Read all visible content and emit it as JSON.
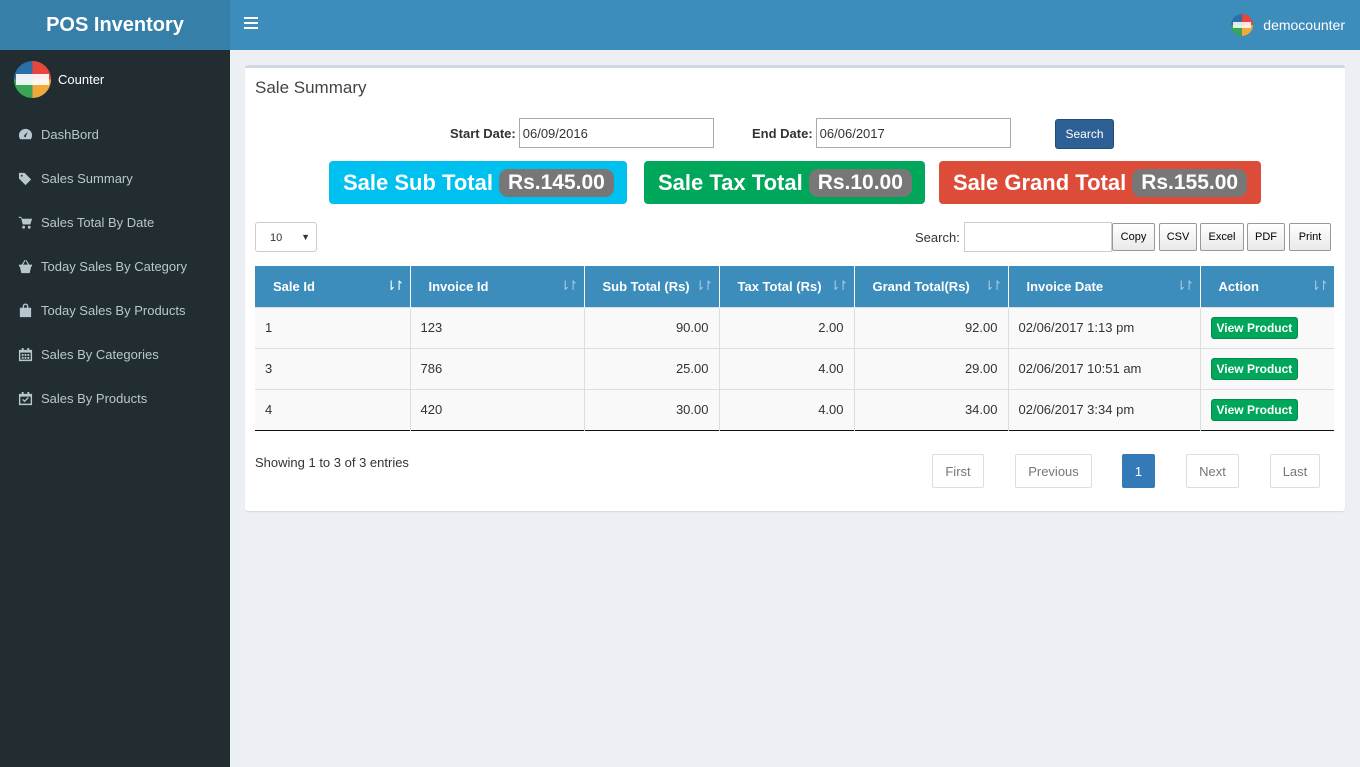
{
  "app": {
    "brand": "POS Inventory",
    "user": "democounter"
  },
  "sidebar": {
    "profile_name": "Counter",
    "items": [
      {
        "label": "DashBord",
        "icon": "dashboard-icon"
      },
      {
        "label": "Sales Summary",
        "icon": "tags-icon"
      },
      {
        "label": "Sales Total By Date",
        "icon": "cart-icon"
      },
      {
        "label": "Today Sales By Category",
        "icon": "basket-icon"
      },
      {
        "label": "Today Sales By Products",
        "icon": "shopping-bag-icon"
      },
      {
        "label": "Sales By Categories",
        "icon": "calendar-icon"
      },
      {
        "label": "Sales By Products",
        "icon": "calendar-check-icon"
      }
    ]
  },
  "page": {
    "title": "Sale Summary",
    "filter": {
      "start_label": "Start Date:",
      "start_value": "06/09/2016",
      "end_label": "End Date:",
      "end_value": "06/06/2017",
      "search_button": "Search"
    },
    "stats": [
      {
        "label": "Sale Sub Total",
        "value": "Rs.145.00",
        "color": "#00c0ef"
      },
      {
        "label": "Sale Tax Total",
        "value": "Rs.10.00",
        "color": "#00a65a"
      },
      {
        "label": "Sale Grand Total",
        "value": "Rs.155.00",
        "color": "#dd4b39"
      }
    ]
  },
  "datatable": {
    "page_length": "10",
    "search_label": "Search:",
    "search_value": "",
    "export_buttons": [
      "Copy",
      "CSV",
      "Excel",
      "PDF",
      "Print"
    ],
    "columns": [
      "Sale Id",
      "Invoice Id",
      "Sub Total (Rs)",
      "Tax Total (Rs)",
      "Grand Total(Rs)",
      "Invoice Date",
      "Action"
    ],
    "rows": [
      {
        "sale_id": "1",
        "invoice_id": "123",
        "sub_total": "90.00",
        "tax_total": "2.00",
        "grand_total": "92.00",
        "date": "02/06/2017 1:13 pm",
        "action": "View Product"
      },
      {
        "sale_id": "3",
        "invoice_id": "786",
        "sub_total": "25.00",
        "tax_total": "4.00",
        "grand_total": "29.00",
        "date": "02/06/2017 10:51 am",
        "action": "View Product"
      },
      {
        "sale_id": "4",
        "invoice_id": "420",
        "sub_total": "30.00",
        "tax_total": "4.00",
        "grand_total": "34.00",
        "date": "02/06/2017 3:34 pm",
        "action": "View Product"
      }
    ],
    "info": "Showing 1 to 3 of 3 entries",
    "pagination": {
      "first": "First",
      "previous": "Previous",
      "current": "1",
      "next": "Next",
      "last": "Last"
    }
  }
}
